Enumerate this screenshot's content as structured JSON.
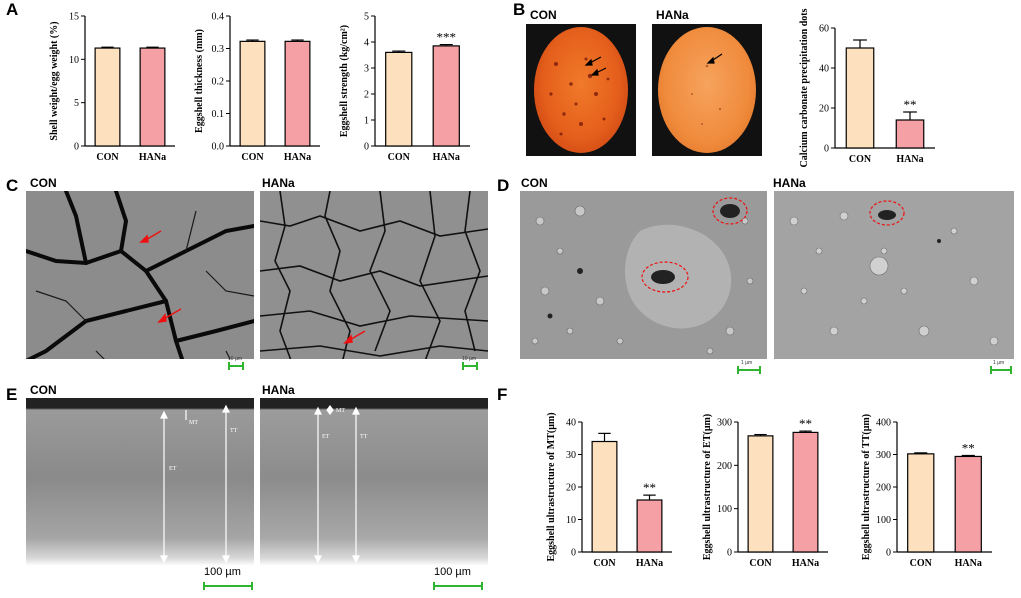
{
  "panels": {
    "A": "A",
    "B": "B",
    "C": "C",
    "D": "D",
    "E": "E",
    "F": "F"
  },
  "groups": {
    "con": "CON",
    "hana": "HANa"
  },
  "colors": {
    "con": "#fde0bd",
    "hana": "#f4a0a5"
  },
  "micrograph_labels": {
    "mt": "MT",
    "et": "ET",
    "tt": "TT"
  },
  "scale_bars": {
    "c_left": "10 µm",
    "c_right": "10 µm",
    "d_left": "1 µm",
    "d_right": "1 µm",
    "e_left": "100 µm",
    "e_right": "100 µm"
  },
  "chart_data": [
    {
      "id": "A1",
      "type": "bar",
      "categories": [
        "CON",
        "HANa"
      ],
      "values": [
        11.3,
        11.3
      ],
      "errors": [
        0.1,
        0.1
      ],
      "ylabel": "Shell weight/egg weight (%)",
      "ylim": [
        0,
        15
      ],
      "yticks": [
        "0",
        "5",
        "10",
        "15"
      ],
      "significance": [
        "",
        ""
      ]
    },
    {
      "id": "A2",
      "type": "bar",
      "categories": [
        "CON",
        "HANa"
      ],
      "values": [
        0.322,
        0.322
      ],
      "errors": [
        0.004,
        0.004
      ],
      "ylabel": "Eggshell thickness (mm)",
      "ylim": [
        0,
        0.4
      ],
      "yticks": [
        "0.0",
        "0.1",
        "0.2",
        "0.3",
        "0.4"
      ],
      "significance": [
        "",
        ""
      ]
    },
    {
      "id": "A3",
      "type": "bar",
      "categories": [
        "CON",
        "HANa"
      ],
      "values": [
        3.6,
        3.85
      ],
      "errors": [
        0.05,
        0.05
      ],
      "ylabel": "Eggshell strength (kg/cm²)",
      "ylim": [
        0,
        5
      ],
      "yticks": [
        "0",
        "1",
        "2",
        "3",
        "4",
        "5"
      ],
      "significance": [
        "",
        "***"
      ]
    },
    {
      "id": "B1",
      "type": "bar",
      "categories": [
        "CON",
        "HANa"
      ],
      "values": [
        50,
        14
      ],
      "errors": [
        4,
        4
      ],
      "ylabel": "Calcium carbonate precipitation dots",
      "ylim": [
        0,
        60
      ],
      "yticks": [
        "0",
        "20",
        "40",
        "60"
      ],
      "significance": [
        "",
        "**"
      ]
    },
    {
      "id": "F1",
      "type": "bar",
      "categories": [
        "CON",
        "HANa"
      ],
      "values": [
        34,
        16
      ],
      "errors": [
        2.5,
        1.5
      ],
      "ylabel": "Eggshell ultrastructure of MT(μm)",
      "ylim": [
        0,
        40
      ],
      "yticks": [
        "0",
        "10",
        "20",
        "30",
        "40"
      ],
      "significance": [
        "",
        "**"
      ]
    },
    {
      "id": "F2",
      "type": "bar",
      "categories": [
        "CON",
        "HANa"
      ],
      "values": [
        268,
        276
      ],
      "errors": [
        3,
        3
      ],
      "ylabel": "Eggshell ultrastructure of ET(μm)",
      "ylim": [
        0,
        300
      ],
      "yticks": [
        "0",
        "100",
        "200",
        "300"
      ],
      "significance": [
        "",
        "**"
      ]
    },
    {
      "id": "F3",
      "type": "bar",
      "categories": [
        "CON",
        "HANa"
      ],
      "values": [
        302,
        294
      ],
      "errors": [
        3,
        3
      ],
      "ylabel": "Eggshell ultrastructure of TT(μm)",
      "ylim": [
        0,
        400
      ],
      "yticks": [
        "0",
        "100",
        "200",
        "300",
        "400"
      ],
      "significance": [
        "",
        "**"
      ]
    }
  ]
}
